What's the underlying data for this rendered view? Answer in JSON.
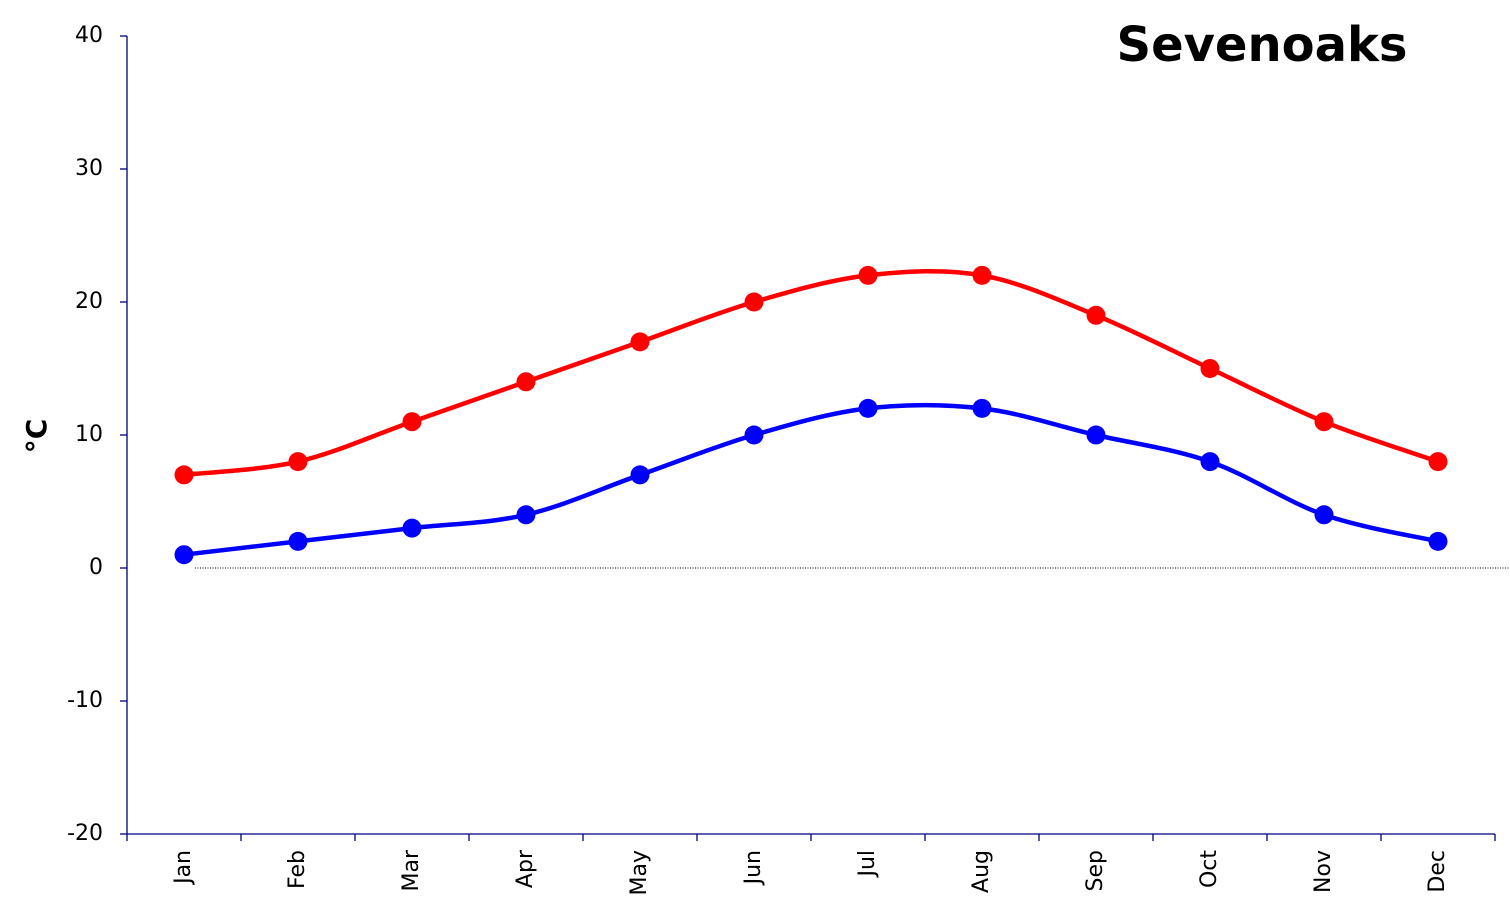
{
  "chart_data": {
    "type": "line",
    "title": "Sevenoaks",
    "y_label": "°C",
    "categories": [
      "Jan",
      "Feb",
      "Mar",
      "Apr",
      "May",
      "Jun",
      "Jul",
      "Aug",
      "Sep",
      "Oct",
      "Nov",
      "Dec"
    ],
    "series": [
      {
        "color": "#ff0000",
        "values": [
          7,
          8,
          11,
          14,
          17,
          20,
          22,
          22,
          19,
          15,
          11,
          8
        ]
      },
      {
        "color": "#0000ff",
        "values": [
          1,
          2,
          3,
          4,
          7,
          10,
          12,
          12,
          10,
          8,
          4,
          2
        ]
      }
    ],
    "ylim": [
      -20,
      40
    ],
    "yticks": [
      -20,
      -10,
      0,
      10,
      20,
      30,
      40
    ],
    "smooth": true,
    "markers": true
  }
}
